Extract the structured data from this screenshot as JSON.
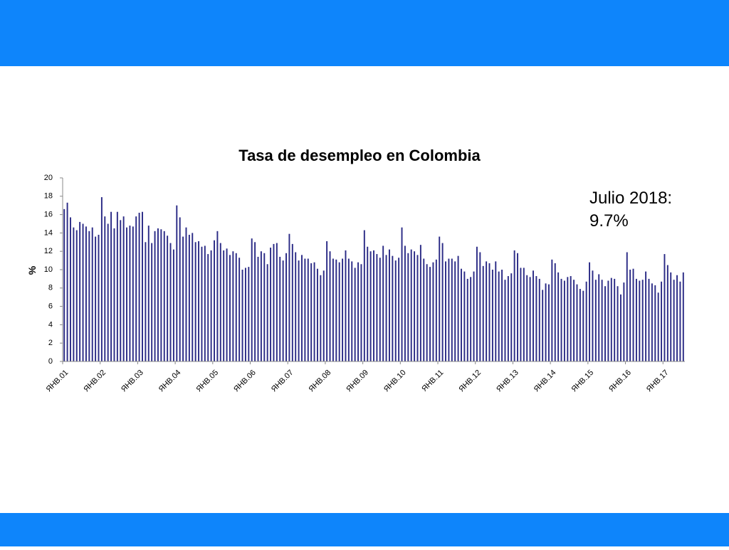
{
  "chart_data": {
    "type": "bar",
    "title": "Tasa de desempleo en Colombia",
    "ylabel": "%",
    "annotation": [
      "Julio 2018:",
      "9.7%"
    ],
    "color": "#2b2b86",
    "grid": false,
    "ylim": [
      0,
      20
    ],
    "yticks": [
      0,
      2,
      4,
      6,
      8,
      10,
      12,
      14,
      16,
      18,
      20
    ],
    "categories": [
      "ЯНВ.01",
      null,
      null,
      null,
      null,
      null,
      null,
      null,
      null,
      null,
      null,
      null,
      "ЯНВ.02",
      null,
      null,
      null,
      null,
      null,
      null,
      null,
      null,
      null,
      null,
      null,
      "ЯНВ.03",
      null,
      null,
      null,
      null,
      null,
      null,
      null,
      null,
      null,
      null,
      null,
      "ЯНВ.04",
      null,
      null,
      null,
      null,
      null,
      null,
      null,
      null,
      null,
      null,
      null,
      "ЯНВ.05",
      null,
      null,
      null,
      null,
      null,
      null,
      null,
      null,
      null,
      null,
      null,
      "ЯНВ.06",
      null,
      null,
      null,
      null,
      null,
      null,
      null,
      null,
      null,
      null,
      null,
      "ЯНВ.07",
      null,
      null,
      null,
      null,
      null,
      null,
      null,
      null,
      null,
      null,
      null,
      "ЯНВ.08",
      null,
      null,
      null,
      null,
      null,
      null,
      null,
      null,
      null,
      null,
      null,
      "ЯНВ.09",
      null,
      null,
      null,
      null,
      null,
      null,
      null,
      null,
      null,
      null,
      null,
      "ЯНВ.10",
      null,
      null,
      null,
      null,
      null,
      null,
      null,
      null,
      null,
      null,
      null,
      "ЯНВ.11",
      null,
      null,
      null,
      null,
      null,
      null,
      null,
      null,
      null,
      null,
      null,
      "ЯНВ.12",
      null,
      null,
      null,
      null,
      null,
      null,
      null,
      null,
      null,
      null,
      null,
      "ЯНВ.13",
      null,
      null,
      null,
      null,
      null,
      null,
      null,
      null,
      null,
      null,
      null,
      "ЯНВ.14",
      null,
      null,
      null,
      null,
      null,
      null,
      null,
      null,
      null,
      null,
      null,
      "ЯНВ.15",
      null,
      null,
      null,
      null,
      null,
      null,
      null,
      null,
      null,
      null,
      null,
      "ЯНВ.16",
      null,
      null,
      null,
      null,
      null,
      null,
      null,
      null,
      null,
      null,
      null,
      "ЯНВ.17",
      null,
      null,
      null,
      null,
      null,
      null
    ],
    "values": [
      16.6,
      17.3,
      15.7,
      14.6,
      14.3,
      15.2,
      15.0,
      14.7,
      14.2,
      14.6,
      13.6,
      13.8,
      17.9,
      15.8,
      15.0,
      16.3,
      14.5,
      16.3,
      15.4,
      15.8,
      14.6,
      14.8,
      14.7,
      15.8,
      16.2,
      16.3,
      13.0,
      14.8,
      12.9,
      14.2,
      14.5,
      14.4,
      14.2,
      13.7,
      12.9,
      12.2,
      17.0,
      15.7,
      13.6,
      14.6,
      13.8,
      14.0,
      13.0,
      13.1,
      12.5,
      12.6,
      11.7,
      12.1,
      13.2,
      14.2,
      12.9,
      12.1,
      12.3,
      11.6,
      12.0,
      11.8,
      11.3,
      10.0,
      10.2,
      10.3,
      13.4,
      13.0,
      11.4,
      12.0,
      11.8,
      10.6,
      12.4,
      12.8,
      12.9,
      11.4,
      11.0,
      11.8,
      13.9,
      12.8,
      11.9,
      11.0,
      11.6,
      11.2,
      11.2,
      10.7,
      10.8,
      10.1,
      9.4,
      9.9,
      13.1,
      12.0,
      11.2,
      11.1,
      10.8,
      11.2,
      12.1,
      11.2,
      10.9,
      10.2,
      10.8,
      10.6,
      14.3,
      12.5,
      12.0,
      12.1,
      11.7,
      11.3,
      12.6,
      11.6,
      12.2,
      11.5,
      11.0,
      11.3,
      14.6,
      12.6,
      11.8,
      12.2,
      12.0,
      11.6,
      12.7,
      11.2,
      10.6,
      10.3,
      10.8,
      11.1,
      13.6,
      12.9,
      10.9,
      11.2,
      11.2,
      10.9,
      11.5,
      10.1,
      9.8,
      9.0,
      9.2,
      9.8,
      12.5,
      11.9,
      10.4,
      10.9,
      10.7,
      10.0,
      10.9,
      9.8,
      10.0,
      8.9,
      9.3,
      9.6,
      12.1,
      11.8,
      10.2,
      10.2,
      9.4,
      9.2,
      9.9,
      9.3,
      9.0,
      7.8,
      8.5,
      8.4,
      11.1,
      10.7,
      9.7,
      9.0,
      8.8,
      9.2,
      9.3,
      8.9,
      8.4,
      7.9,
      7.7,
      8.7,
      10.8,
      9.9,
      8.9,
      9.5,
      8.9,
      8.2,
      8.8,
      9.1,
      9.0,
      8.2,
      7.3,
      8.6,
      11.9,
      10.0,
      10.1,
      9.0,
      8.8,
      8.9,
      9.8,
      9.0,
      8.5,
      8.3,
      7.5,
      8.7,
      11.7,
      10.5,
      9.7,
      8.9,
      9.4,
      8.7,
      9.7
    ]
  }
}
